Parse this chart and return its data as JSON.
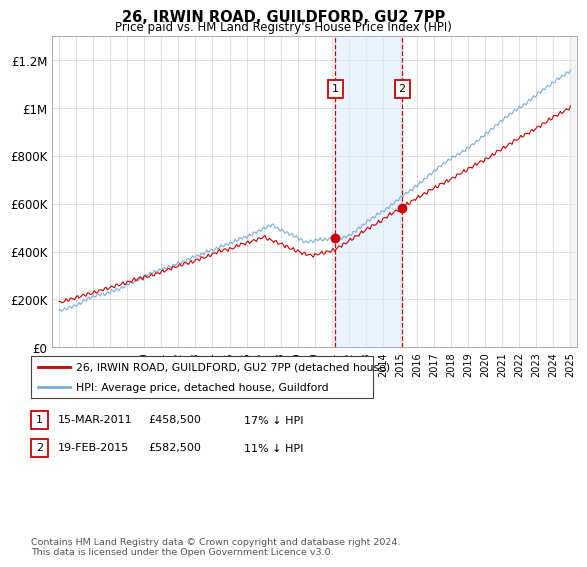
{
  "title": "26, IRWIN ROAD, GUILDFORD, GU2 7PP",
  "subtitle": "Price paid vs. HM Land Registry's House Price Index (HPI)",
  "ylim": [
    0,
    1300000
  ],
  "yticks": [
    0,
    200000,
    400000,
    600000,
    800000,
    1000000,
    1200000
  ],
  "ytick_labels": [
    "£0",
    "£200K",
    "£400K",
    "£600K",
    "£800K",
    "£1M",
    "£1.2M"
  ],
  "legend_entries": [
    "26, IRWIN ROAD, GUILDFORD, GU2 7PP (detached house)",
    "HPI: Average price, detached house, Guildford"
  ],
  "legend_colors": [
    "#cc0000",
    "#7aaddc"
  ],
  "sale1_date": 2011.2,
  "sale1_price": 458500,
  "sale2_date": 2015.13,
  "sale2_price": 582500,
  "shade_color": "#ddeeff",
  "dashed_color": "#cc0000",
  "annotation_box_color": "#cc0000",
  "footnote": "Contains HM Land Registry data © Crown copyright and database right 2024.\nThis data is licensed under the Open Government Licence v3.0.",
  "table_rows": [
    [
      "1",
      "15-MAR-2011",
      "£458,500",
      "17% ↓ HPI"
    ],
    [
      "2",
      "19-FEB-2015",
      "£582,500",
      "11% ↓ HPI"
    ]
  ]
}
